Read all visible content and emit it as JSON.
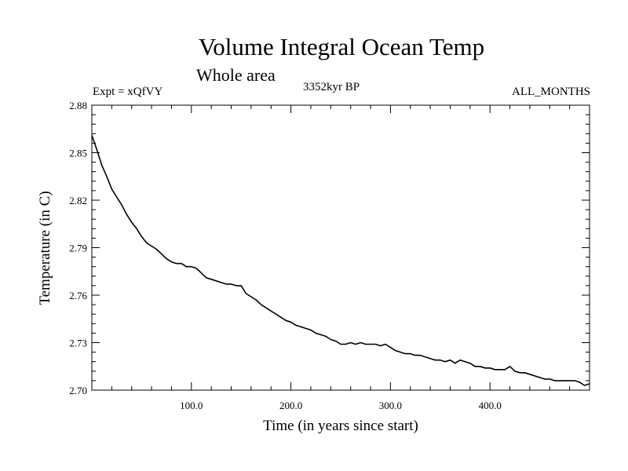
{
  "header": {
    "title": "Volume Integral Ocean Temp",
    "subtitle": "Whole area",
    "experiment": "Expt = xQfVY",
    "period": "3352kyr BP",
    "season": "ALL_MONTHS"
  },
  "chart_data": {
    "type": "line",
    "title": "Volume Integral Ocean Temp",
    "subtitle": "Whole area",
    "xlabel": "Time (in years since start)",
    "ylabel": "Temperature (in C)",
    "xlim": [
      0,
      500
    ],
    "ylim": [
      2.7,
      2.88
    ],
    "x_ticks": [
      100,
      200,
      300,
      400
    ],
    "x_tick_labels": [
      "100.0",
      "200.0",
      "300.0",
      "400.0"
    ],
    "y_ticks": [
      2.7,
      2.73,
      2.76,
      2.79,
      2.82,
      2.85,
      2.88
    ],
    "y_tick_labels": [
      "2.70",
      "2.73",
      "2.76",
      "2.79",
      "2.82",
      "2.85",
      "2.88"
    ],
    "grid": false,
    "series": [
      {
        "name": "Volume integral ocean temperature",
        "color": "#000000",
        "x": [
          0,
          5,
          10,
          15,
          20,
          25,
          30,
          35,
          40,
          45,
          50,
          55,
          60,
          65,
          70,
          75,
          80,
          85,
          90,
          95,
          100,
          105,
          110,
          115,
          120,
          125,
          130,
          135,
          140,
          145,
          150,
          155,
          160,
          165,
          170,
          175,
          180,
          185,
          190,
          195,
          200,
          205,
          210,
          215,
          220,
          225,
          230,
          235,
          240,
          245,
          250,
          255,
          260,
          265,
          270,
          275,
          280,
          285,
          290,
          295,
          300,
          305,
          310,
          315,
          320,
          325,
          330,
          335,
          340,
          345,
          350,
          355,
          360,
          365,
          370,
          375,
          380,
          385,
          390,
          395,
          400,
          405,
          410,
          415,
          420,
          425,
          430,
          435,
          440,
          445,
          450,
          455,
          460,
          465,
          470,
          475,
          480,
          485,
          490,
          495,
          500
        ],
        "values": [
          2.861,
          2.852,
          2.842,
          2.835,
          2.827,
          2.822,
          2.817,
          2.811,
          2.806,
          2.802,
          2.797,
          2.793,
          2.791,
          2.789,
          2.786,
          2.783,
          2.781,
          2.78,
          2.78,
          2.778,
          2.778,
          2.777,
          2.774,
          2.771,
          2.77,
          2.769,
          2.768,
          2.767,
          2.767,
          2.766,
          2.766,
          2.761,
          2.759,
          2.757,
          2.754,
          2.752,
          2.75,
          2.748,
          2.746,
          2.744,
          2.743,
          2.741,
          2.74,
          2.739,
          2.738,
          2.736,
          2.735,
          2.734,
          2.732,
          2.731,
          2.729,
          2.729,
          2.73,
          2.729,
          2.73,
          2.729,
          2.729,
          2.729,
          2.728,
          2.729,
          2.727,
          2.725,
          2.724,
          2.723,
          2.723,
          2.722,
          2.722,
          2.721,
          2.72,
          2.719,
          2.719,
          2.718,
          2.719,
          2.717,
          2.719,
          2.718,
          2.717,
          2.715,
          2.715,
          2.714,
          2.714,
          2.713,
          2.713,
          2.713,
          2.715,
          2.712,
          2.711,
          2.711,
          2.71,
          2.709,
          2.708,
          2.707,
          2.707,
          2.706,
          2.706,
          2.706,
          2.706,
          2.706,
          2.705,
          2.703,
          2.704
        ]
      }
    ]
  }
}
